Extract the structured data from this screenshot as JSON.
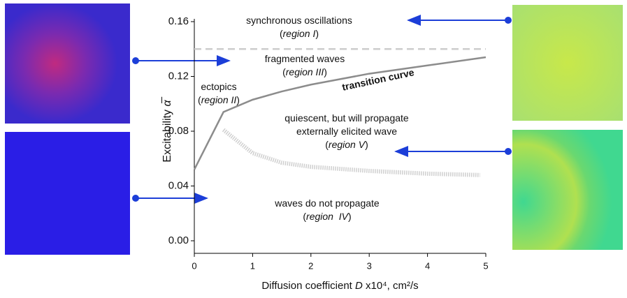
{
  "chart_data": {
    "type": "line",
    "x_label": [
      {
        "text": "Diffusion coefficient "
      },
      {
        "text": "D",
        "italic": true
      },
      {
        "text": " x10⁴, cm²/s"
      }
    ],
    "y_label": [
      {
        "text": "Excitability "
      },
      {
        "text": "α̅",
        "italic": true
      }
    ],
    "xlim": [
      0,
      5
    ],
    "ylim": [
      0,
      0.16
    ],
    "xticks": [
      0,
      1,
      2,
      3,
      4,
      5
    ],
    "yticks": [
      {
        "value": 0,
        "label": "0.00"
      },
      {
        "value": 0.04,
        "label": "0.04"
      },
      {
        "value": 0.08,
        "label": "0.08"
      },
      {
        "value": 0.12,
        "label": "0.12"
      },
      {
        "value": 0.16,
        "label": "0.16"
      }
    ],
    "series": [
      {
        "color": "#8c8c8c",
        "style": "solid",
        "x": [
          0,
          0.5,
          1,
          1.5,
          2,
          3,
          4,
          5
        ],
        "values": [
          0.052,
          0.094,
          0.103,
          0.109,
          0.114,
          0.122,
          0.128,
          0.134
        ]
      },
      {
        "color": "#cfcfcf",
        "style": "dotted",
        "x": [
          0.5,
          1,
          1.5,
          2,
          3,
          4,
          4.9
        ],
        "values": [
          0.081,
          0.064,
          0.057,
          0.054,
          0.051,
          0.049,
          0.048
        ]
      },
      {
        "color": "#cccccc",
        "style": "dashed",
        "x": [
          0,
          5
        ],
        "values": [
          0.14,
          0.14
        ]
      }
    ],
    "annotations": [
      {
        "lines": [
          [
            {
              "text": "synchronous oscillations"
            }
          ],
          [
            {
              "text": "("
            },
            {
              "text": "region I",
              "italic": true
            },
            {
              "text": ")"
            }
          ]
        ]
      },
      {
        "lines": [
          [
            {
              "text": "fragmented waves"
            }
          ],
          [
            {
              "text": "("
            },
            {
              "text": "region III",
              "italic": true
            },
            {
              "text": ")"
            }
          ]
        ]
      },
      {
        "lines": [
          [
            {
              "text": "ectopics"
            }
          ],
          [
            {
              "text": "("
            },
            {
              "text": "region II",
              "italic": true
            },
            {
              "text": ")"
            }
          ]
        ]
      },
      {
        "lines": [
          [
            {
              "text": "transition curve",
              "bold": true
            }
          ]
        ]
      },
      {
        "lines": [
          [
            {
              "text": "quiescent, but will propagate"
            }
          ],
          [
            {
              "text": "externally elicited wave"
            }
          ],
          [
            {
              "text": "("
            },
            {
              "text": "region V",
              "italic": true
            },
            {
              "text": ")"
            }
          ]
        ]
      },
      {
        "lines": [
          [
            {
              "text": "waves do not propagate"
            }
          ],
          [
            {
              "text": "("
            },
            {
              "text": "region  IV",
              "italic": true
            },
            {
              "text": ")"
            }
          ]
        ]
      }
    ]
  }
}
